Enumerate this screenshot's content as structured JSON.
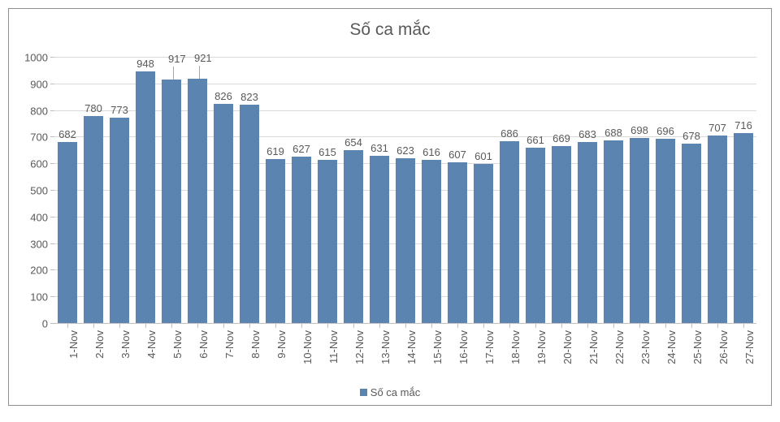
{
  "chart": {
    "type": "bar",
    "title": "Số ca mắc",
    "title_fontsize": 21,
    "title_color": "#595959",
    "background_color": "#ffffff",
    "border_color": "#8f8f8f",
    "plot_background": "#ffffff",
    "grid_color": "#d9d9d9",
    "axis_line_color": "#bfbfbf",
    "tick_mark_color": "#bfbfbf",
    "tick_label_color": "#595959",
    "tick_label_fontsize": 13,
    "value_label_color": "#595959",
    "value_label_fontsize": 13,
    "bar_color": "#5b84b1",
    "bar_width_ratio": 0.78,
    "callout_line_color": "#a6a6a6",
    "ylim": [
      0,
      1000
    ],
    "ytick_step": 100,
    "categories": [
      "1-Nov",
      "2-Nov",
      "3-Nov",
      "4-Nov",
      "5-Nov",
      "6-Nov",
      "7-Nov",
      "8-Nov",
      "9-Nov",
      "10-Nov",
      "11-Nov",
      "12-Nov",
      "13-Nov",
      "14-Nov",
      "15-Nov",
      "16-Nov",
      "17-Nov",
      "18-Nov",
      "19-Nov",
      "20-Nov",
      "21-Nov",
      "22-Nov",
      "23-Nov",
      "24-Nov",
      "25-Nov",
      "26-Nov",
      "27-Nov"
    ],
    "values": [
      682,
      780,
      773,
      948,
      917,
      921,
      826,
      823,
      619,
      627,
      615,
      654,
      631,
      623,
      616,
      607,
      601,
      686,
      661,
      669,
      683,
      688,
      698,
      696,
      678,
      707,
      716
    ],
    "legend": {
      "label": "Số ca mắc",
      "fontsize": 13
    }
  }
}
